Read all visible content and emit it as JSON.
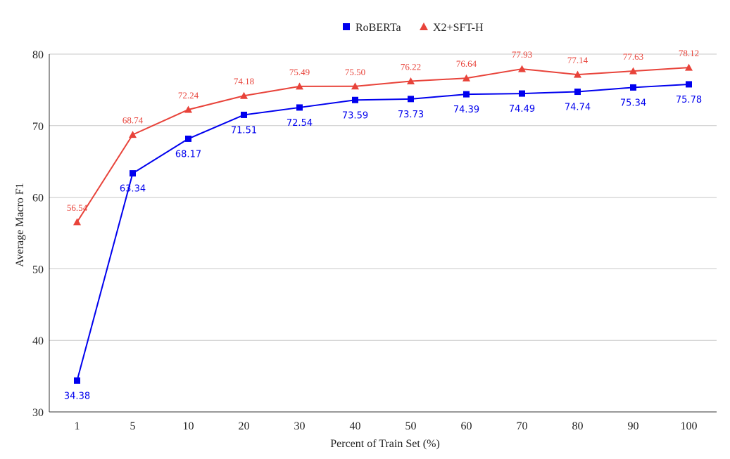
{
  "chart_data": {
    "type": "line",
    "categories": [
      "1",
      "5",
      "10",
      "20",
      "30",
      "40",
      "50",
      "60",
      "70",
      "80",
      "90",
      "100"
    ],
    "xlabel": "Percent of Train Set (%)",
    "ylabel": "Average Macro F1",
    "ylim": [
      30,
      80
    ],
    "yticks": [
      "30",
      "40",
      "50",
      "60",
      "70",
      "80"
    ],
    "grid": true,
    "legend_position": "top",
    "series": [
      {
        "name": "RoBERTa",
        "color": "#0000ee",
        "marker": "square",
        "values": [
          34.38,
          63.34,
          68.17,
          71.51,
          72.54,
          73.59,
          73.73,
          74.39,
          74.49,
          74.74,
          75.34,
          75.78
        ],
        "labels": [
          "34.38",
          "63.34",
          "68.17",
          "71.51",
          "72.54",
          "73.59",
          "73.73",
          "74.39",
          "74.49",
          "74.74",
          "75.34",
          "75.78"
        ]
      },
      {
        "name": "X2+SFT-H",
        "color": "#e8433a",
        "marker": "triangle",
        "values": [
          56.54,
          68.74,
          72.24,
          74.18,
          75.49,
          75.5,
          76.22,
          76.64,
          77.93,
          77.14,
          77.63,
          78.12
        ],
        "labels": [
          "56.54",
          "68.74",
          "72.24",
          "74.18",
          "75.49",
          "75.50",
          "76.22",
          "76.64",
          "77.93",
          "77.14",
          "77.63",
          "78.12"
        ]
      }
    ]
  }
}
